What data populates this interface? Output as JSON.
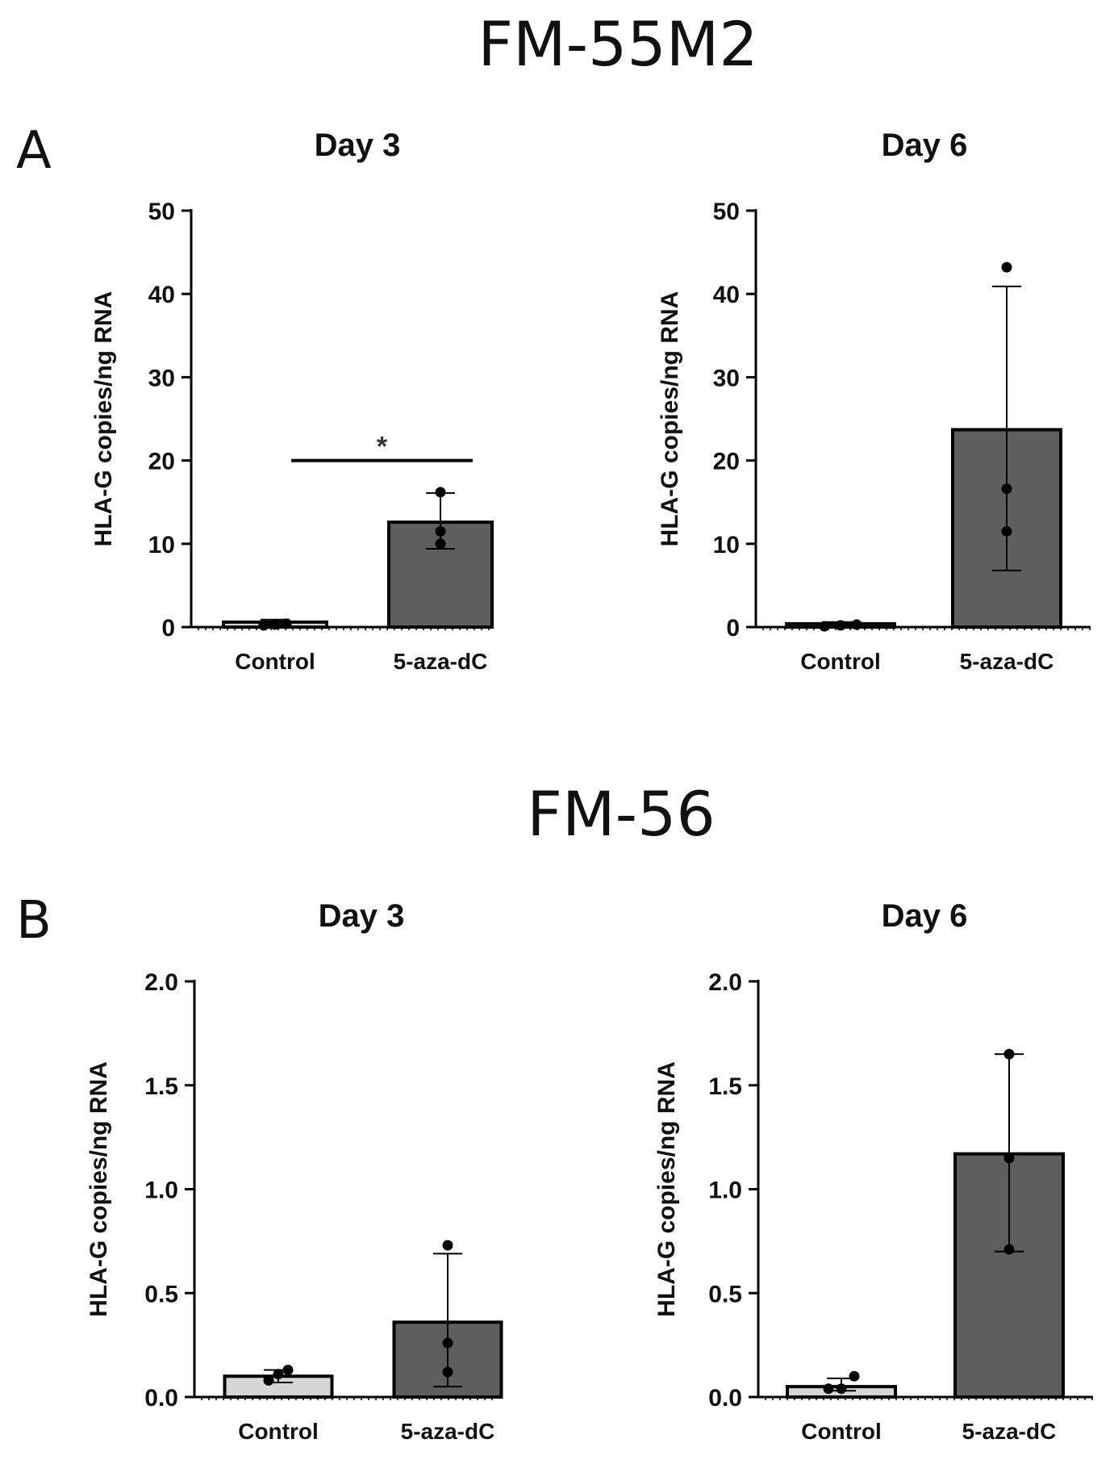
{
  "figure": {
    "section_titles": [
      "FM-55M2",
      "FM-56"
    ],
    "panel_letters": [
      "A",
      "B"
    ]
  },
  "colors": {
    "control": "#d6d6d6",
    "treated": "#5e5e5e",
    "ink": "#000000"
  },
  "chart_data": [
    {
      "type": "bar",
      "panel": "A",
      "cell_line": "FM-55M2",
      "title": "Day 3",
      "ylabel": "HLA-G copies/ng RNA",
      "ylim": [
        0,
        50
      ],
      "yticks": [
        0,
        10,
        20,
        30,
        40,
        50
      ],
      "ytick_labels": [
        "0",
        "10",
        "20",
        "30",
        "40",
        "50"
      ],
      "categories": [
        "Control",
        "5-aza-dC"
      ],
      "values": [
        0.6,
        12.6
      ],
      "error": [
        [
          0.3,
          0.9
        ],
        [
          9.4,
          16.1
        ]
      ],
      "points": [
        [
          0.2,
          0.3,
          0.4
        ],
        [
          10.0,
          11.5,
          16.2
        ]
      ],
      "significance": {
        "label": "*",
        "y": 20
      }
    },
    {
      "type": "bar",
      "panel": "A",
      "cell_line": "FM-55M2",
      "title": "Day 6",
      "ylabel": "HLA-G copies/ng RNA",
      "ylim": [
        0,
        50
      ],
      "yticks": [
        0,
        10,
        20,
        30,
        40,
        50
      ],
      "ytick_labels": [
        "0",
        "10",
        "20",
        "30",
        "40",
        "50"
      ],
      "categories": [
        "Control",
        "5-aza-dC"
      ],
      "values": [
        0.4,
        23.7
      ],
      "error": [
        [
          0.2,
          0.6
        ],
        [
          6.8,
          40.9
        ]
      ],
      "points": [
        [
          0.1,
          0.2,
          0.3
        ],
        [
          11.5,
          16.6,
          43.2
        ]
      ],
      "significance": null
    },
    {
      "type": "bar",
      "panel": "B",
      "cell_line": "FM-56",
      "title": "Day 3",
      "ylabel": "HLA-G copies/ng RNA",
      "ylim": [
        0,
        2.0
      ],
      "yticks": [
        0,
        0.5,
        1.0,
        1.5,
        2.0
      ],
      "ytick_labels": [
        "0.0",
        "0.5",
        "1.0",
        "1.5",
        "2.0"
      ],
      "categories": [
        "Control",
        "5-aza-dC"
      ],
      "values": [
        0.1,
        0.36
      ],
      "error": [
        [
          0.07,
          0.13
        ],
        [
          0.05,
          0.69
        ]
      ],
      "points": [
        [
          0.08,
          0.11,
          0.13
        ],
        [
          0.12,
          0.26,
          0.73
        ]
      ],
      "significance": null
    },
    {
      "type": "bar",
      "panel": "B",
      "cell_line": "FM-56",
      "title": "Day 6",
      "ylabel": "HLA-G copies/ng RNA",
      "ylim": [
        0,
        2.0
      ],
      "yticks": [
        0,
        0.5,
        1.0,
        1.5,
        2.0
      ],
      "ytick_labels": [
        "0.0",
        "0.5",
        "1.0",
        "1.5",
        "2.0"
      ],
      "categories": [
        "Control",
        "5-aza-dC"
      ],
      "values": [
        0.05,
        1.17
      ],
      "error": [
        [
          0.03,
          0.09
        ],
        [
          0.7,
          1.65
        ]
      ],
      "points": [
        [
          0.04,
          0.04,
          0.1
        ],
        [
          0.71,
          1.15,
          1.65
        ]
      ],
      "significance": null
    }
  ]
}
